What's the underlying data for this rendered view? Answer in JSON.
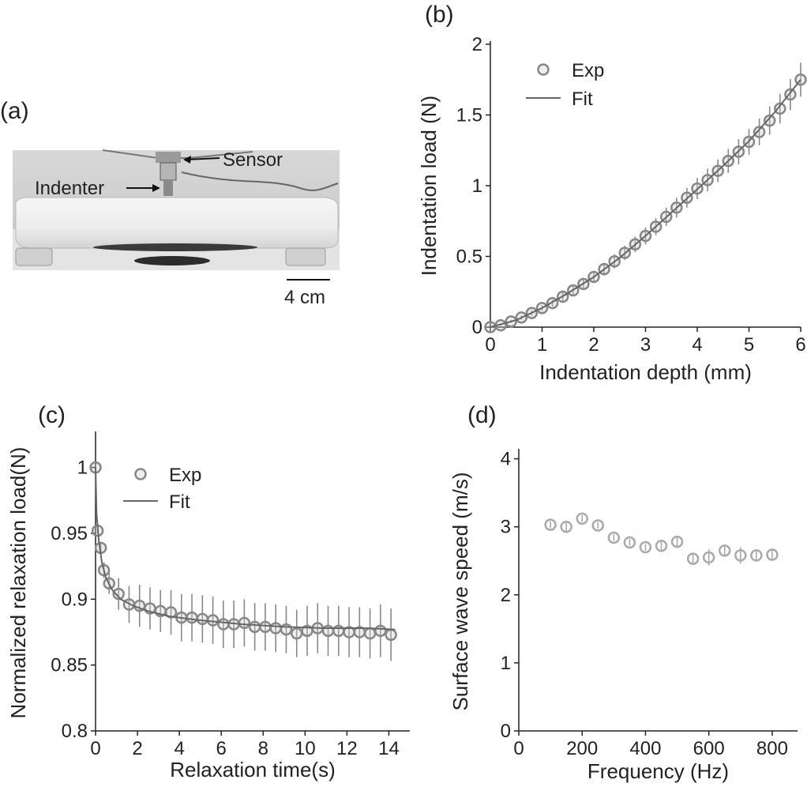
{
  "panels": {
    "a": {
      "label": "(a)",
      "sensor_label": "Sensor",
      "indenter_label": "Indenter",
      "scale_label": "4 cm"
    },
    "b": {
      "label": "(b)"
    },
    "c": {
      "label": "(c)"
    },
    "d": {
      "label": "(d)"
    }
  },
  "colors": {
    "marker": "#888888",
    "fit": "#666666",
    "marker_d": "#aaaaaa",
    "axis": "#222222"
  },
  "chart_data": [
    {
      "id": "b",
      "type": "scatter",
      "xlabel": "Indentation depth (mm)",
      "ylabel": "Indentation load (N)",
      "xlim": [
        0,
        6
      ],
      "ylim": [
        0,
        2
      ],
      "xticks": [
        0,
        1,
        2,
        3,
        4,
        5,
        6
      ],
      "yticks": [
        0,
        0.5,
        1,
        1.5,
        2
      ],
      "ytick_labels": [
        "0",
        "0.5",
        "1",
        "1.5",
        "2"
      ],
      "legend": [
        "Exp",
        "Fit"
      ],
      "legend_position": "top-left",
      "series": [
        {
          "name": "Exp",
          "kind": "points",
          "x": [
            0,
            0.2,
            0.4,
            0.6,
            0.8,
            1.0,
            1.2,
            1.4,
            1.6,
            1.8,
            2.0,
            2.2,
            2.4,
            2.6,
            2.8,
            3.0,
            3.2,
            3.4,
            3.6,
            3.8,
            4.0,
            4.2,
            4.4,
            4.6,
            4.8,
            5.0,
            5.2,
            5.4,
            5.6,
            5.8,
            6.0
          ],
          "y": [
            0.0,
            0.013,
            0.04,
            0.068,
            0.1,
            0.135,
            0.17,
            0.215,
            0.26,
            0.305,
            0.355,
            0.41,
            0.465,
            0.525,
            0.585,
            0.645,
            0.71,
            0.78,
            0.845,
            0.915,
            0.98,
            1.04,
            1.105,
            1.175,
            1.24,
            1.31,
            1.38,
            1.46,
            1.545,
            1.645,
            1.75
          ],
          "err": [
            0.0,
            0.005,
            0.01,
            0.015,
            0.02,
            0.02,
            0.025,
            0.03,
            0.035,
            0.04,
            0.04,
            0.045,
            0.05,
            0.05,
            0.055,
            0.06,
            0.06,
            0.065,
            0.07,
            0.07,
            0.075,
            0.08,
            0.08,
            0.085,
            0.09,
            0.09,
            0.095,
            0.1,
            0.105,
            0.11,
            0.12
          ]
        },
        {
          "name": "Fit",
          "kind": "line",
          "x": [
            0,
            0.5,
            1,
            1.5,
            2,
            2.5,
            3,
            3.5,
            4,
            4.5,
            5,
            5.5,
            6
          ],
          "y": [
            0,
            0.05,
            0.135,
            0.24,
            0.355,
            0.49,
            0.645,
            0.81,
            0.975,
            1.14,
            1.315,
            1.52,
            1.75
          ]
        }
      ]
    },
    {
      "id": "c",
      "type": "scatter",
      "xlabel": "Relaxation time(s)",
      "ylabel": "Normalized relaxation load(N)",
      "xlim": [
        0,
        15
      ],
      "ylim": [
        0.8,
        1.025
      ],
      "xticks": [
        0,
        2,
        4,
        6,
        8,
        10,
        12,
        14
      ],
      "yticks": [
        0.8,
        0.85,
        0.9,
        0.95,
        1
      ],
      "ytick_labels": [
        "0.8",
        "0.85",
        "0.9",
        "0.95",
        "1"
      ],
      "legend": [
        "Exp",
        "Fit"
      ],
      "legend_position": "top-left",
      "series": [
        {
          "name": "Exp",
          "kind": "points",
          "x": [
            0,
            0.1,
            0.25,
            0.4,
            0.65,
            1.1,
            1.6,
            2.1,
            2.6,
            3.1,
            3.6,
            4.1,
            4.6,
            5.1,
            5.6,
            6.1,
            6.6,
            7.1,
            7.6,
            8.1,
            8.6,
            9.1,
            9.6,
            10.1,
            10.6,
            11.1,
            11.6,
            12.1,
            12.6,
            13.1,
            13.6,
            14.1
          ],
          "y": [
            1.0,
            0.952,
            0.939,
            0.922,
            0.912,
            0.904,
            0.896,
            0.895,
            0.893,
            0.891,
            0.89,
            0.886,
            0.886,
            0.885,
            0.884,
            0.881,
            0.881,
            0.882,
            0.879,
            0.879,
            0.878,
            0.877,
            0.874,
            0.876,
            0.878,
            0.876,
            0.876,
            0.875,
            0.875,
            0.874,
            0.876,
            0.873
          ],
          "err": [
            0.0,
            0.002,
            0.004,
            0.006,
            0.008,
            0.012,
            0.014,
            0.016,
            0.016,
            0.016,
            0.017,
            0.018,
            0.018,
            0.018,
            0.018,
            0.018,
            0.018,
            0.018,
            0.018,
            0.018,
            0.018,
            0.018,
            0.018,
            0.019,
            0.019,
            0.019,
            0.019,
            0.019,
            0.019,
            0.019,
            0.02,
            0.02
          ]
        },
        {
          "name": "Fit",
          "kind": "line",
          "x": [
            0,
            0.05,
            0.15,
            0.3,
            0.5,
            0.8,
            1.2,
            1.8,
            2.5,
            3.5,
            5,
            7,
            9,
            11,
            13,
            14.3
          ],
          "y": [
            1.0,
            0.965,
            0.945,
            0.928,
            0.916,
            0.907,
            0.9,
            0.895,
            0.891,
            0.887,
            0.884,
            0.881,
            0.879,
            0.878,
            0.878,
            0.877
          ]
        }
      ]
    },
    {
      "id": "d",
      "type": "scatter",
      "xlabel": "Frequency (Hz)",
      "ylabel": "Surface wave speed (m/s)",
      "xlim": [
        0,
        880
      ],
      "ylim": [
        0,
        4.1
      ],
      "xticks": [
        0,
        200,
        400,
        600,
        800
      ],
      "yticks": [
        0,
        1,
        2,
        3,
        4
      ],
      "ytick_labels": [
        "0",
        "1",
        "2",
        "3",
        "4"
      ],
      "series": [
        {
          "kind": "points",
          "x": [
            100,
            150,
            200,
            250,
            300,
            350,
            400,
            450,
            500,
            550,
            600,
            650,
            700,
            750,
            800
          ],
          "y": [
            3.03,
            3.0,
            3.12,
            3.02,
            2.84,
            2.77,
            2.7,
            2.72,
            2.78,
            2.53,
            2.55,
            2.65,
            2.58,
            2.58,
            2.59
          ],
          "err": [
            0.05,
            0.06,
            0.05,
            0.05,
            0.05,
            0.05,
            0.05,
            0.08,
            0.07,
            0.08,
            0.12,
            0.08,
            0.12,
            0.08,
            0.07
          ]
        }
      ]
    }
  ]
}
